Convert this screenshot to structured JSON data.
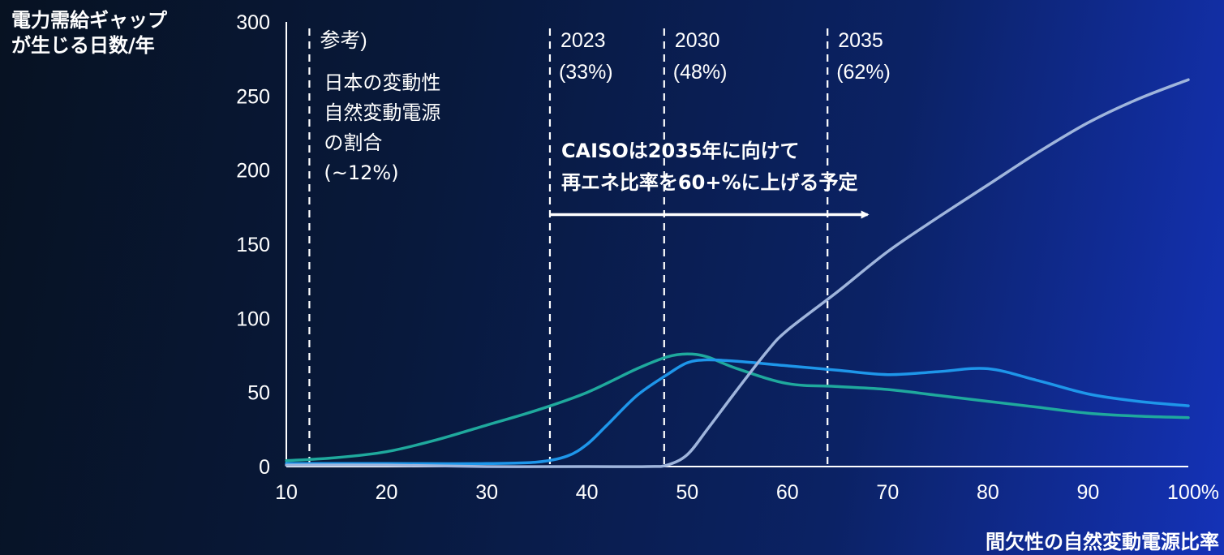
{
  "chart_data": {
    "type": "line",
    "ylabel": "電力需給ギャップ\nが生じる日数/年",
    "xlabel": "間欠性の自然変動電源比率",
    "xlim": [
      10,
      100
    ],
    "ylim": [
      0,
      300
    ],
    "xticks": [
      "10",
      "20",
      "30",
      "40",
      "50",
      "60",
      "70",
      "80",
      "90",
      "100%"
    ],
    "yticks": [
      "300",
      "250",
      "200",
      "150",
      "100",
      "50",
      "0"
    ],
    "grid": false,
    "series": [
      {
        "color": "#1fa99d",
        "x": [
          10,
          15,
          20,
          25,
          30,
          35,
          40,
          45,
          48,
          50,
          52,
          55,
          60,
          65,
          70,
          75,
          80,
          85,
          90,
          95,
          100
        ],
        "y": [
          4,
          6,
          10,
          18,
          28,
          38,
          50,
          66,
          74,
          76,
          74,
          66,
          56,
          54,
          52,
          48,
          44,
          40,
          36,
          34,
          33
        ]
      },
      {
        "color": "#1e96ea",
        "x": [
          10,
          20,
          30,
          35,
          38,
          40,
          42,
          45,
          48,
          50,
          52,
          55,
          60,
          65,
          70,
          75,
          80,
          85,
          90,
          95,
          100
        ],
        "y": [
          2,
          2,
          2,
          3,
          7,
          15,
          28,
          48,
          62,
          70,
          72,
          71,
          68,
          65,
          62,
          64,
          66,
          58,
          49,
          44,
          41
        ]
      },
      {
        "color": "#9fb5dc",
        "x": [
          10,
          20,
          30,
          40,
          46,
          48,
          50,
          52,
          55,
          58,
          60,
          65,
          70,
          75,
          80,
          85,
          90,
          95,
          100
        ],
        "y": [
          1,
          1,
          0,
          0,
          0,
          1,
          8,
          25,
          52,
          78,
          92,
          118,
          145,
          168,
          190,
          212,
          232,
          248,
          261
        ]
      }
    ],
    "vlines": [
      {
        "x": 12.3,
        "label": "参考)"
      },
      {
        "x": 36.3,
        "label": "2023",
        "sublabel": "(33%)"
      },
      {
        "x": 47.7,
        "label": "2030",
        "sublabel": "(48%)"
      },
      {
        "x": 64.0,
        "label": "2035",
        "sublabel": "(62%)"
      }
    ],
    "annotations": {
      "ref_note": [
        "日本の変動性",
        "自然変動電源",
        "の割合",
        "(~12%)"
      ],
      "caiso_note": [
        "CAISOは2035年に向けて",
        "再エネ比率を60+%に上げる予定"
      ]
    },
    "arrow": {
      "x_from": 36.3,
      "x_to": 68,
      "y": 170
    }
  }
}
